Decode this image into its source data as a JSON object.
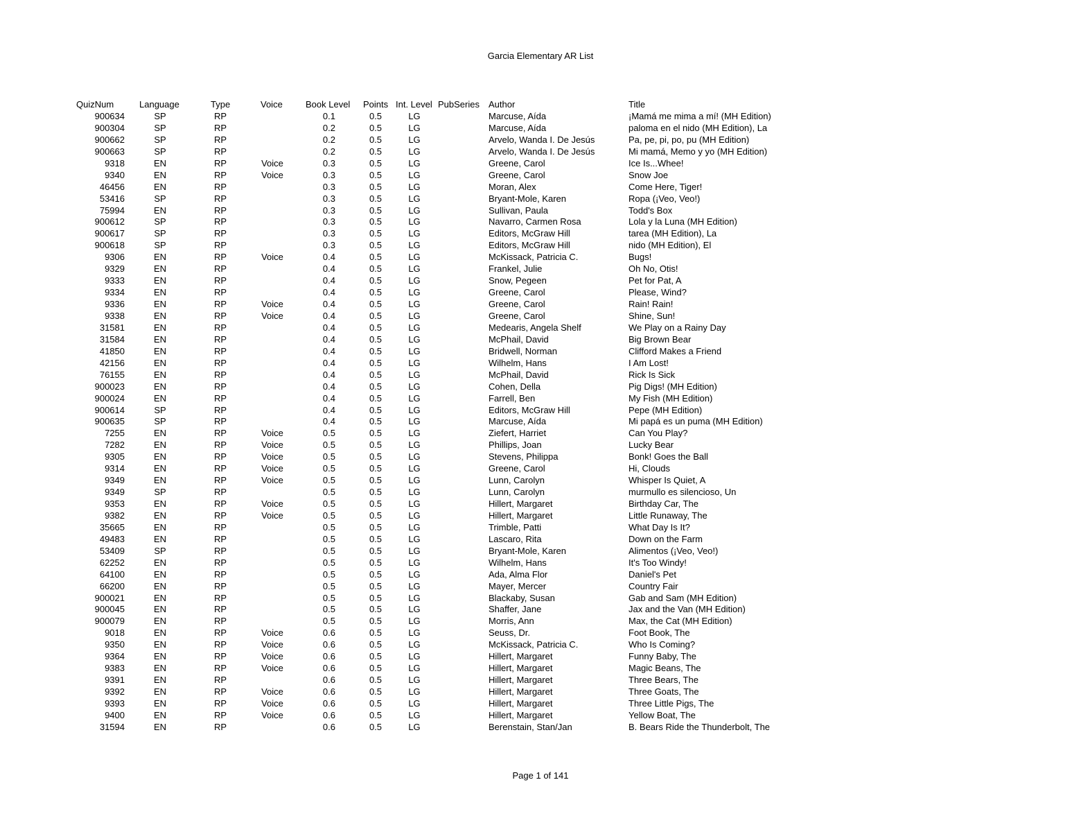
{
  "title": "Garcia Elementary AR List",
  "footer": "Page 1 of 141",
  "columns": [
    "QuizNum",
    "Language",
    "Type",
    "Voice",
    "Book Level",
    "Points",
    "Int. Level",
    "PubSeries",
    "Author",
    "Title"
  ],
  "rows": [
    [
      "900634",
      "SP",
      "RP",
      "",
      "0.1",
      "0.5",
      "LG",
      "",
      "Marcuse, Aída",
      "¡Mamá me mima a mí! (MH Edition)"
    ],
    [
      "900304",
      "SP",
      "RP",
      "",
      "0.2",
      "0.5",
      "LG",
      "",
      "Marcuse, Aída",
      "paloma en el nido (MH Edition), La"
    ],
    [
      "900662",
      "SP",
      "RP",
      "",
      "0.2",
      "0.5",
      "LG",
      "",
      "Arvelo, Wanda I. De Jesús",
      "Pa, pe, pi, po, pu (MH Edition)"
    ],
    [
      "900663",
      "SP",
      "RP",
      "",
      "0.2",
      "0.5",
      "LG",
      "",
      "Arvelo, Wanda I. De Jesús",
      "Mi mamá, Memo y yo (MH Edition)"
    ],
    [
      "9318",
      "EN",
      "RP",
      "Voice",
      "0.3",
      "0.5",
      "LG",
      "",
      "Greene, Carol",
      "Ice Is...Whee!"
    ],
    [
      "9340",
      "EN",
      "RP",
      "Voice",
      "0.3",
      "0.5",
      "LG",
      "",
      "Greene, Carol",
      "Snow Joe"
    ],
    [
      "46456",
      "EN",
      "RP",
      "",
      "0.3",
      "0.5",
      "LG",
      "",
      "Moran, Alex",
      "Come Here, Tiger!"
    ],
    [
      "53416",
      "SP",
      "RP",
      "",
      "0.3",
      "0.5",
      "LG",
      "",
      "Bryant-Mole, Karen",
      "Ropa  (¡Veo, Veo!)"
    ],
    [
      "75994",
      "EN",
      "RP",
      "",
      "0.3",
      "0.5",
      "LG",
      "",
      "Sullivan, Paula",
      "Todd's Box"
    ],
    [
      "900612",
      "SP",
      "RP",
      "",
      "0.3",
      "0.5",
      "LG",
      "",
      "Navarro, Carmen Rosa",
      "Lola y la Luna (MH Edition)"
    ],
    [
      "900617",
      "SP",
      "RP",
      "",
      "0.3",
      "0.5",
      "LG",
      "",
      "Editors, McGraw Hill",
      "tarea (MH Edition), La"
    ],
    [
      "900618",
      "SP",
      "RP",
      "",
      "0.3",
      "0.5",
      "LG",
      "",
      "Editors, McGraw Hill",
      "nido (MH Edition), El"
    ],
    [
      "9306",
      "EN",
      "RP",
      "Voice",
      "0.4",
      "0.5",
      "LG",
      "",
      "McKissack, Patricia C.",
      "Bugs!"
    ],
    [
      "9329",
      "EN",
      "RP",
      "",
      "0.4",
      "0.5",
      "LG",
      "",
      "Frankel, Julie",
      "Oh No, Otis!"
    ],
    [
      "9333",
      "EN",
      "RP",
      "",
      "0.4",
      "0.5",
      "LG",
      "",
      "Snow, Pegeen",
      "Pet for Pat, A"
    ],
    [
      "9334",
      "EN",
      "RP",
      "",
      "0.4",
      "0.5",
      "LG",
      "",
      "Greene, Carol",
      "Please, Wind?"
    ],
    [
      "9336",
      "EN",
      "RP",
      "Voice",
      "0.4",
      "0.5",
      "LG",
      "",
      "Greene, Carol",
      "Rain! Rain!"
    ],
    [
      "9338",
      "EN",
      "RP",
      "Voice",
      "0.4",
      "0.5",
      "LG",
      "",
      "Greene, Carol",
      "Shine, Sun!"
    ],
    [
      "31581",
      "EN",
      "RP",
      "",
      "0.4",
      "0.5",
      "LG",
      "",
      "Medearis, Angela Shelf",
      "We Play on a Rainy Day"
    ],
    [
      "31584",
      "EN",
      "RP",
      "",
      "0.4",
      "0.5",
      "LG",
      "",
      "McPhail, David",
      "Big Brown Bear"
    ],
    [
      "41850",
      "EN",
      "RP",
      "",
      "0.4",
      "0.5",
      "LG",
      "",
      "Bridwell, Norman",
      "Clifford Makes a Friend"
    ],
    [
      "42156",
      "EN",
      "RP",
      "",
      "0.4",
      "0.5",
      "LG",
      "",
      "Wilhelm, Hans",
      "I Am Lost!"
    ],
    [
      "76155",
      "EN",
      "RP",
      "",
      "0.4",
      "0.5",
      "LG",
      "",
      "McPhail, David",
      "Rick Is Sick"
    ],
    [
      "900023",
      "EN",
      "RP",
      "",
      "0.4",
      "0.5",
      "LG",
      "",
      "Cohen, Della",
      "Pig Digs! (MH Edition)"
    ],
    [
      "900024",
      "EN",
      "RP",
      "",
      "0.4",
      "0.5",
      "LG",
      "",
      "Farrell, Ben",
      "My Fish (MH Edition)"
    ],
    [
      "900614",
      "SP",
      "RP",
      "",
      "0.4",
      "0.5",
      "LG",
      "",
      "Editors, McGraw Hill",
      "Pepe (MH Edition)"
    ],
    [
      "900635",
      "SP",
      "RP",
      "",
      "0.4",
      "0.5",
      "LG",
      "",
      "Marcuse, Aída",
      "Mi papá es un puma (MH Edition)"
    ],
    [
      "7255",
      "EN",
      "RP",
      "Voice",
      "0.5",
      "0.5",
      "LG",
      "",
      "Ziefert, Harriet",
      "Can You Play?"
    ],
    [
      "7282",
      "EN",
      "RP",
      "Voice",
      "0.5",
      "0.5",
      "LG",
      "",
      "Phillips, Joan",
      "Lucky Bear"
    ],
    [
      "9305",
      "EN",
      "RP",
      "Voice",
      "0.5",
      "0.5",
      "LG",
      "",
      "Stevens, Philippa",
      "Bonk! Goes the Ball"
    ],
    [
      "9314",
      "EN",
      "RP",
      "Voice",
      "0.5",
      "0.5",
      "LG",
      "",
      "Greene, Carol",
      "Hi, Clouds"
    ],
    [
      "9349",
      "EN",
      "RP",
      "Voice",
      "0.5",
      "0.5",
      "LG",
      "",
      "Lunn, Carolyn",
      "Whisper Is Quiet, A"
    ],
    [
      "9349",
      "SP",
      "RP",
      "",
      "0.5",
      "0.5",
      "LG",
      "",
      "Lunn, Carolyn",
      "murmullo es silencioso, Un"
    ],
    [
      "9353",
      "EN",
      "RP",
      "Voice",
      "0.5",
      "0.5",
      "LG",
      "",
      "Hillert, Margaret",
      "Birthday Car, The"
    ],
    [
      "9382",
      "EN",
      "RP",
      "Voice",
      "0.5",
      "0.5",
      "LG",
      "",
      "Hillert, Margaret",
      "Little Runaway, The"
    ],
    [
      "35665",
      "EN",
      "RP",
      "",
      "0.5",
      "0.5",
      "LG",
      "",
      "Trimble, Patti",
      "What Day Is It?"
    ],
    [
      "49483",
      "EN",
      "RP",
      "",
      "0.5",
      "0.5",
      "LG",
      "",
      "Lascaro, Rita",
      "Down on the Farm"
    ],
    [
      "53409",
      "SP",
      "RP",
      "",
      "0.5",
      "0.5",
      "LG",
      "",
      "Bryant-Mole, Karen",
      "Alimentos  (¡Veo, Veo!)"
    ],
    [
      "62252",
      "EN",
      "RP",
      "",
      "0.5",
      "0.5",
      "LG",
      "",
      "Wilhelm, Hans",
      "It's Too Windy!"
    ],
    [
      "64100",
      "EN",
      "RP",
      "",
      "0.5",
      "0.5",
      "LG",
      "",
      "Ada, Alma Flor",
      "Daniel's Pet"
    ],
    [
      "66200",
      "EN",
      "RP",
      "",
      "0.5",
      "0.5",
      "LG",
      "",
      "Mayer, Mercer",
      "Country Fair"
    ],
    [
      "900021",
      "EN",
      "RP",
      "",
      "0.5",
      "0.5",
      "LG",
      "",
      "Blackaby, Susan",
      "Gab and Sam (MH Edition)"
    ],
    [
      "900045",
      "EN",
      "RP",
      "",
      "0.5",
      "0.5",
      "LG",
      "",
      "Shaffer, Jane",
      "Jax and the Van (MH Edition)"
    ],
    [
      "900079",
      "EN",
      "RP",
      "",
      "0.5",
      "0.5",
      "LG",
      "",
      "Morris, Ann",
      "Max, the Cat (MH Edition)"
    ],
    [
      "9018",
      "EN",
      "RP",
      "Voice",
      "0.6",
      "0.5",
      "LG",
      "",
      "Seuss, Dr.",
      "Foot Book, The"
    ],
    [
      "9350",
      "EN",
      "RP",
      "Voice",
      "0.6",
      "0.5",
      "LG",
      "",
      "McKissack, Patricia C.",
      "Who Is Coming?"
    ],
    [
      "9364",
      "EN",
      "RP",
      "Voice",
      "0.6",
      "0.5",
      "LG",
      "",
      "Hillert, Margaret",
      "Funny Baby, The"
    ],
    [
      "9383",
      "EN",
      "RP",
      "Voice",
      "0.6",
      "0.5",
      "LG",
      "",
      "Hillert, Margaret",
      "Magic Beans, The"
    ],
    [
      "9391",
      "EN",
      "RP",
      "",
      "0.6",
      "0.5",
      "LG",
      "",
      "Hillert, Margaret",
      "Three Bears, The"
    ],
    [
      "9392",
      "EN",
      "RP",
      "Voice",
      "0.6",
      "0.5",
      "LG",
      "",
      "Hillert, Margaret",
      "Three Goats, The"
    ],
    [
      "9393",
      "EN",
      "RP",
      "Voice",
      "0.6",
      "0.5",
      "LG",
      "",
      "Hillert, Margaret",
      "Three Little Pigs, The"
    ],
    [
      "9400",
      "EN",
      "RP",
      "Voice",
      "0.6",
      "0.5",
      "LG",
      "",
      "Hillert, Margaret",
      "Yellow Boat, The"
    ],
    [
      "31594",
      "EN",
      "RP",
      "",
      "0.6",
      "0.5",
      "LG",
      "",
      "Berenstain, Stan/Jan",
      "B. Bears Ride the Thunderbolt, The"
    ]
  ]
}
